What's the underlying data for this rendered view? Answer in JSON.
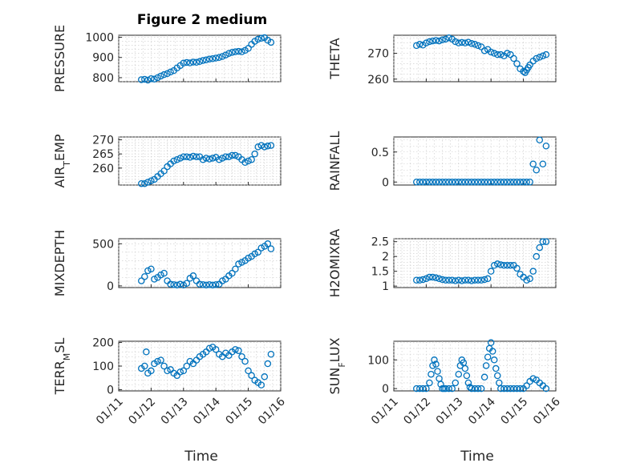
{
  "figure": {
    "title": "Figure 2 medium",
    "marker_color": "#0072BD",
    "xlabel": "Time"
  },
  "chart_data": [
    {
      "type": "scatter",
      "ylabel": "PRESSURE",
      "ylim": [
        780,
        1010
      ],
      "yticks": [
        800,
        900,
        1000
      ],
      "ytick_labels": [
        "800",
        "900",
        "1000"
      ],
      "xlim": [
        11,
        16
      ],
      "xticks": [
        11,
        12,
        13,
        14,
        15,
        16
      ],
      "xtick_labels": [],
      "show_title": true,
      "x": [
        11.7,
        11.8,
        11.9,
        12.0,
        12.1,
        12.2,
        12.3,
        12.4,
        12.5,
        12.6,
        12.7,
        12.8,
        12.9,
        13.0,
        13.1,
        13.2,
        13.3,
        13.4,
        13.5,
        13.6,
        13.7,
        13.8,
        13.9,
        14.0,
        14.1,
        14.2,
        14.3,
        14.4,
        14.5,
        14.6,
        14.7,
        14.8,
        14.9,
        15.0,
        15.1,
        15.2,
        15.3,
        15.4,
        15.5,
        15.6,
        15.7
      ],
      "y": [
        790,
        792,
        788,
        795,
        793,
        800,
        808,
        815,
        820,
        828,
        835,
        848,
        860,
        872,
        875,
        873,
        877,
        876,
        880,
        885,
        888,
        892,
        894,
        897,
        900,
        905,
        912,
        920,
        925,
        928,
        930,
        928,
        935,
        945,
        965,
        980,
        990,
        995,
        998,
        985,
        975
      ]
    },
    {
      "type": "scatter",
      "ylabel": "THETA",
      "ylim": [
        259,
        277
      ],
      "yticks": [
        260,
        270
      ],
      "ytick_labels": [
        "260",
        "270"
      ],
      "xlim": [
        11,
        16
      ],
      "xticks": [
        11,
        12,
        13,
        14,
        15,
        16
      ],
      "xtick_labels": [],
      "show_title": false,
      "x": [
        11.7,
        11.8,
        11.9,
        12.0,
        12.1,
        12.2,
        12.3,
        12.4,
        12.5,
        12.6,
        12.7,
        12.8,
        12.9,
        13.0,
        13.1,
        13.2,
        13.3,
        13.4,
        13.5,
        13.6,
        13.7,
        13.8,
        13.9,
        14.0,
        14.1,
        14.2,
        14.3,
        14.4,
        14.5,
        14.6,
        14.7,
        14.8,
        14.9,
        15.0,
        15.05,
        15.1,
        15.15,
        15.2,
        15.3,
        15.4,
        15.5,
        15.6,
        15.7
      ],
      "y": [
        273,
        273.5,
        273.2,
        274,
        274.5,
        274.8,
        275,
        274.8,
        275.2,
        275.5,
        276,
        275.5,
        274.5,
        274,
        274.2,
        274,
        274.3,
        273.8,
        273.5,
        273,
        272.5,
        271,
        271.5,
        270.5,
        270,
        269.5,
        269.5,
        269,
        270,
        269.5,
        268,
        266,
        264,
        263,
        262.5,
        263.5,
        264.5,
        265.5,
        267,
        268,
        268.5,
        269,
        269.5
      ]
    },
    {
      "type": "scatter",
      "ylabel": "AIR",
      "ylabel_sub": "T",
      "ylabel_rest": "EMP",
      "ylim": [
        254,
        271
      ],
      "yticks": [
        260,
        265,
        270
      ],
      "ytick_labels": [
        "260",
        "265",
        "270"
      ],
      "xlim": [
        11,
        16
      ],
      "xticks": [
        11,
        12,
        13,
        14,
        15,
        16
      ],
      "xtick_labels": [],
      "show_title": false,
      "x": [
        11.7,
        11.8,
        11.9,
        12.0,
        12.1,
        12.2,
        12.3,
        12.4,
        12.5,
        12.6,
        12.7,
        12.8,
        12.9,
        13.0,
        13.1,
        13.2,
        13.3,
        13.4,
        13.5,
        13.6,
        13.7,
        13.8,
        13.9,
        14.0,
        14.1,
        14.2,
        14.3,
        14.4,
        14.5,
        14.6,
        14.7,
        14.8,
        14.9,
        15.0,
        15.1,
        15.2,
        15.3,
        15.4,
        15.5,
        15.6,
        15.7
      ],
      "y": [
        254.5,
        254.5,
        255,
        255.5,
        256,
        257,
        258,
        259,
        260.5,
        261.5,
        262.5,
        263,
        263.5,
        264,
        264,
        263.8,
        264.2,
        264,
        264,
        263,
        263.5,
        263.2,
        263.5,
        263.8,
        263,
        263.5,
        264,
        264,
        264.5,
        264.5,
        264,
        263,
        262,
        262.5,
        263,
        265,
        267.5,
        268,
        267.5,
        267.8,
        268
      ]
    },
    {
      "type": "scatter",
      "ylabel": "RAINFALL",
      "ylim": [
        -0.05,
        0.75
      ],
      "yticks": [
        0,
        0.5
      ],
      "ytick_labels": [
        "0",
        "0.5"
      ],
      "xlim": [
        11,
        16
      ],
      "xticks": [
        11,
        12,
        13,
        14,
        15,
        16
      ],
      "xtick_labels": [],
      "show_title": false,
      "x": [
        11.7,
        11.8,
        11.9,
        12.0,
        12.1,
        12.2,
        12.3,
        12.4,
        12.5,
        12.6,
        12.7,
        12.8,
        12.9,
        13.0,
        13.1,
        13.2,
        13.3,
        13.4,
        13.5,
        13.6,
        13.7,
        13.8,
        13.9,
        14.0,
        14.1,
        14.2,
        14.3,
        14.4,
        14.5,
        14.6,
        14.7,
        14.8,
        14.9,
        15.0,
        15.1,
        15.2,
        15.3,
        15.4,
        15.5,
        15.6,
        15.7
      ],
      "y": [
        0,
        0,
        0,
        0,
        0,
        0,
        0,
        0,
        0,
        0,
        0,
        0,
        0,
        0,
        0,
        0,
        0,
        0,
        0,
        0,
        0,
        0,
        0,
        0,
        0,
        0,
        0,
        0,
        0,
        0,
        0,
        0,
        0,
        0,
        0,
        0,
        0.3,
        0.2,
        0.7,
        0.3,
        0.6
      ]
    },
    {
      "type": "scatter",
      "ylabel": "MIXDEPTH",
      "ylim": [
        -20,
        560
      ],
      "yticks": [
        0,
        500
      ],
      "ytick_labels": [
        "0",
        "500"
      ],
      "xlim": [
        11,
        16
      ],
      "xticks": [
        11,
        12,
        13,
        14,
        15,
        16
      ],
      "xtick_labels": [],
      "show_title": false,
      "x": [
        11.7,
        11.8,
        11.9,
        12.0,
        12.1,
        12.2,
        12.3,
        12.4,
        12.5,
        12.6,
        12.7,
        12.8,
        12.9,
        13.0,
        13.1,
        13.2,
        13.3,
        13.4,
        13.5,
        13.6,
        13.7,
        13.8,
        13.9,
        14.0,
        14.1,
        14.2,
        14.3,
        14.4,
        14.5,
        14.6,
        14.7,
        14.8,
        14.9,
        15.0,
        15.1,
        15.2,
        15.3,
        15.4,
        15.5,
        15.6,
        15.7
      ],
      "y": [
        60,
        110,
        180,
        200,
        80,
        100,
        130,
        150,
        60,
        20,
        15,
        10,
        20,
        10,
        30,
        90,
        120,
        60,
        20,
        15,
        10,
        15,
        10,
        15,
        20,
        60,
        80,
        120,
        150,
        200,
        260,
        280,
        300,
        330,
        350,
        380,
        400,
        450,
        470,
        500,
        440
      ]
    },
    {
      "type": "scatter",
      "ylabel": "H2OMIXRA",
      "ylim": [
        0.95,
        2.6
      ],
      "yticks": [
        1,
        1.5,
        2,
        2.5
      ],
      "ytick_labels": [
        "1",
        "1.5",
        "2",
        "2.5"
      ],
      "xlim": [
        11,
        16
      ],
      "xticks": [
        11,
        12,
        13,
        14,
        15,
        16
      ],
      "xtick_labels": [],
      "show_title": false,
      "x": [
        11.7,
        11.8,
        11.9,
        12.0,
        12.1,
        12.2,
        12.3,
        12.4,
        12.5,
        12.6,
        12.7,
        12.8,
        12.9,
        13.0,
        13.1,
        13.2,
        13.3,
        13.4,
        13.5,
        13.6,
        13.7,
        13.8,
        13.9,
        14.0,
        14.1,
        14.2,
        14.3,
        14.4,
        14.5,
        14.6,
        14.7,
        14.8,
        14.9,
        15.0,
        15.1,
        15.2,
        15.3,
        15.4,
        15.5,
        15.6,
        15.7
      ],
      "y": [
        1.2,
        1.2,
        1.22,
        1.25,
        1.3,
        1.3,
        1.28,
        1.25,
        1.22,
        1.2,
        1.2,
        1.2,
        1.18,
        1.2,
        1.18,
        1.2,
        1.2,
        1.18,
        1.2,
        1.2,
        1.2,
        1.22,
        1.25,
        1.5,
        1.7,
        1.75,
        1.72,
        1.7,
        1.7,
        1.7,
        1.7,
        1.6,
        1.4,
        1.3,
        1.2,
        1.25,
        1.5,
        2.0,
        2.3,
        2.5,
        2.5
      ]
    },
    {
      "type": "scatter",
      "ylabel": "TERR",
      "ylabel_sub": "M",
      "ylabel_rest": "SL",
      "ylim": [
        -5,
        205
      ],
      "yticks": [
        0,
        100,
        200
      ],
      "ytick_labels": [
        "0",
        "100",
        "200"
      ],
      "xlim": [
        11,
        16
      ],
      "xticks": [
        11,
        12,
        13,
        14,
        15,
        16
      ],
      "xtick_labels": [
        "01/11",
        "01/12",
        "01/13",
        "01/14",
        "01/15",
        "01/16"
      ],
      "show_title": false,
      "x": [
        11.7,
        11.8,
        11.85,
        11.9,
        12.0,
        12.1,
        12.2,
        12.3,
        12.4,
        12.5,
        12.6,
        12.7,
        12.8,
        12.9,
        13.0,
        13.1,
        13.2,
        13.3,
        13.4,
        13.5,
        13.6,
        13.7,
        13.8,
        13.9,
        14.0,
        14.1,
        14.2,
        14.3,
        14.4,
        14.5,
        14.6,
        14.7,
        14.8,
        14.9,
        15.0,
        15.1,
        15.2,
        15.3,
        15.4,
        15.5,
        15.6,
        15.7
      ],
      "y": [
        90,
        100,
        160,
        70,
        80,
        110,
        120,
        125,
        100,
        80,
        85,
        70,
        60,
        75,
        80,
        100,
        120,
        110,
        125,
        140,
        150,
        160,
        175,
        180,
        170,
        150,
        140,
        155,
        145,
        160,
        170,
        165,
        140,
        120,
        80,
        60,
        40,
        30,
        20,
        55,
        110,
        150
      ]
    },
    {
      "type": "scatter",
      "ylabel": "SUN",
      "ylabel_sub": "F",
      "ylabel_rest": "LUX",
      "ylim": [
        -8,
        165
      ],
      "yticks": [
        0,
        100
      ],
      "ytick_labels": [
        "0",
        "100"
      ],
      "xlim": [
        11,
        16
      ],
      "xticks": [
        11,
        12,
        13,
        14,
        15,
        16
      ],
      "xtick_labels": [
        "01/11",
        "01/12",
        "01/13",
        "01/14",
        "01/15",
        "01/16"
      ],
      "show_title": false,
      "x": [
        11.7,
        11.8,
        11.9,
        12.0,
        12.1,
        12.15,
        12.2,
        12.25,
        12.3,
        12.35,
        12.4,
        12.45,
        12.5,
        12.55,
        12.6,
        12.7,
        12.8,
        12.9,
        13.0,
        13.05,
        13.1,
        13.15,
        13.2,
        13.25,
        13.3,
        13.35,
        13.4,
        13.5,
        13.6,
        13.7,
        13.8,
        13.85,
        13.9,
        13.95,
        14.0,
        14.05,
        14.1,
        14.15,
        14.2,
        14.25,
        14.3,
        14.4,
        14.5,
        14.6,
        14.7,
        14.8,
        14.9,
        15.0,
        15.1,
        15.2,
        15.3,
        15.4,
        15.5,
        15.6,
        15.7
      ],
      "y": [
        0,
        0,
        0,
        0,
        20,
        50,
        80,
        100,
        85,
        60,
        35,
        15,
        0,
        0,
        0,
        0,
        0,
        20,
        50,
        80,
        100,
        90,
        70,
        45,
        20,
        5,
        0,
        0,
        0,
        0,
        40,
        80,
        110,
        140,
        160,
        130,
        100,
        70,
        45,
        20,
        0,
        0,
        0,
        0,
        0,
        0,
        0,
        0,
        10,
        25,
        35,
        30,
        20,
        10,
        0
      ]
    }
  ]
}
